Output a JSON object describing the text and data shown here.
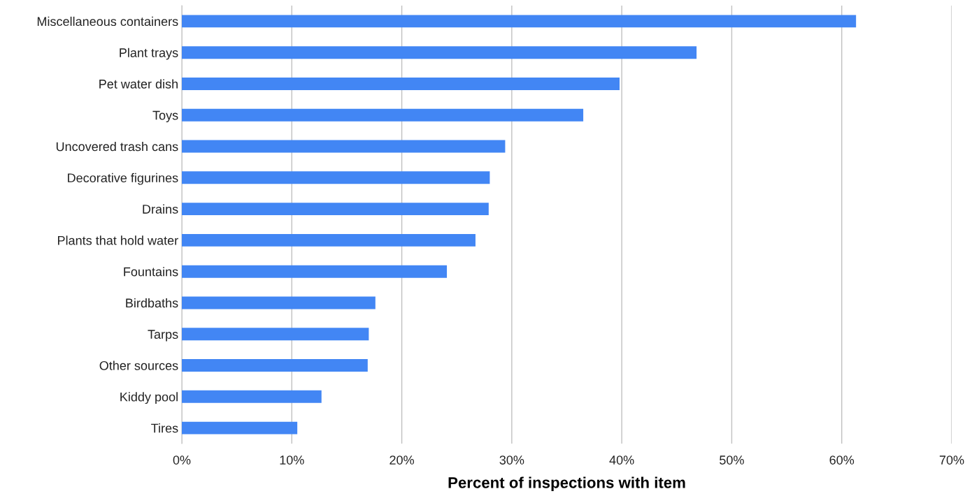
{
  "chart_data": {
    "type": "bar",
    "orientation": "horizontal",
    "xlabel": "Percent of inspections with item",
    "categories": [
      "Miscellaneous containers",
      "Plant trays",
      "Pet water dish",
      "Toys",
      "Uncovered trash cans",
      "Decorative figurines",
      "Drains",
      "Plants that hold water",
      "Fountains",
      "Birdbaths",
      "Tarps",
      "Other sources",
      "Kiddy pool",
      "Tires"
    ],
    "values": [
      61.3,
      46.8,
      39.8,
      36.5,
      29.4,
      28.0,
      27.9,
      26.7,
      24.1,
      17.6,
      17.0,
      16.9,
      12.7,
      10.5
    ],
    "color": "#4286f4",
    "xlim": [
      0,
      70
    ],
    "xticks": [
      {
        "value": 0,
        "label": "0%"
      },
      {
        "value": 10,
        "label": "10%"
      },
      {
        "value": 20,
        "label": "20%"
      },
      {
        "value": 30,
        "label": "30%"
      },
      {
        "value": 40,
        "label": "40%"
      },
      {
        "value": 50,
        "label": "50%"
      },
      {
        "value": 60,
        "label": "60%"
      },
      {
        "value": 70,
        "label": "70%"
      }
    ],
    "grid": "x"
  }
}
